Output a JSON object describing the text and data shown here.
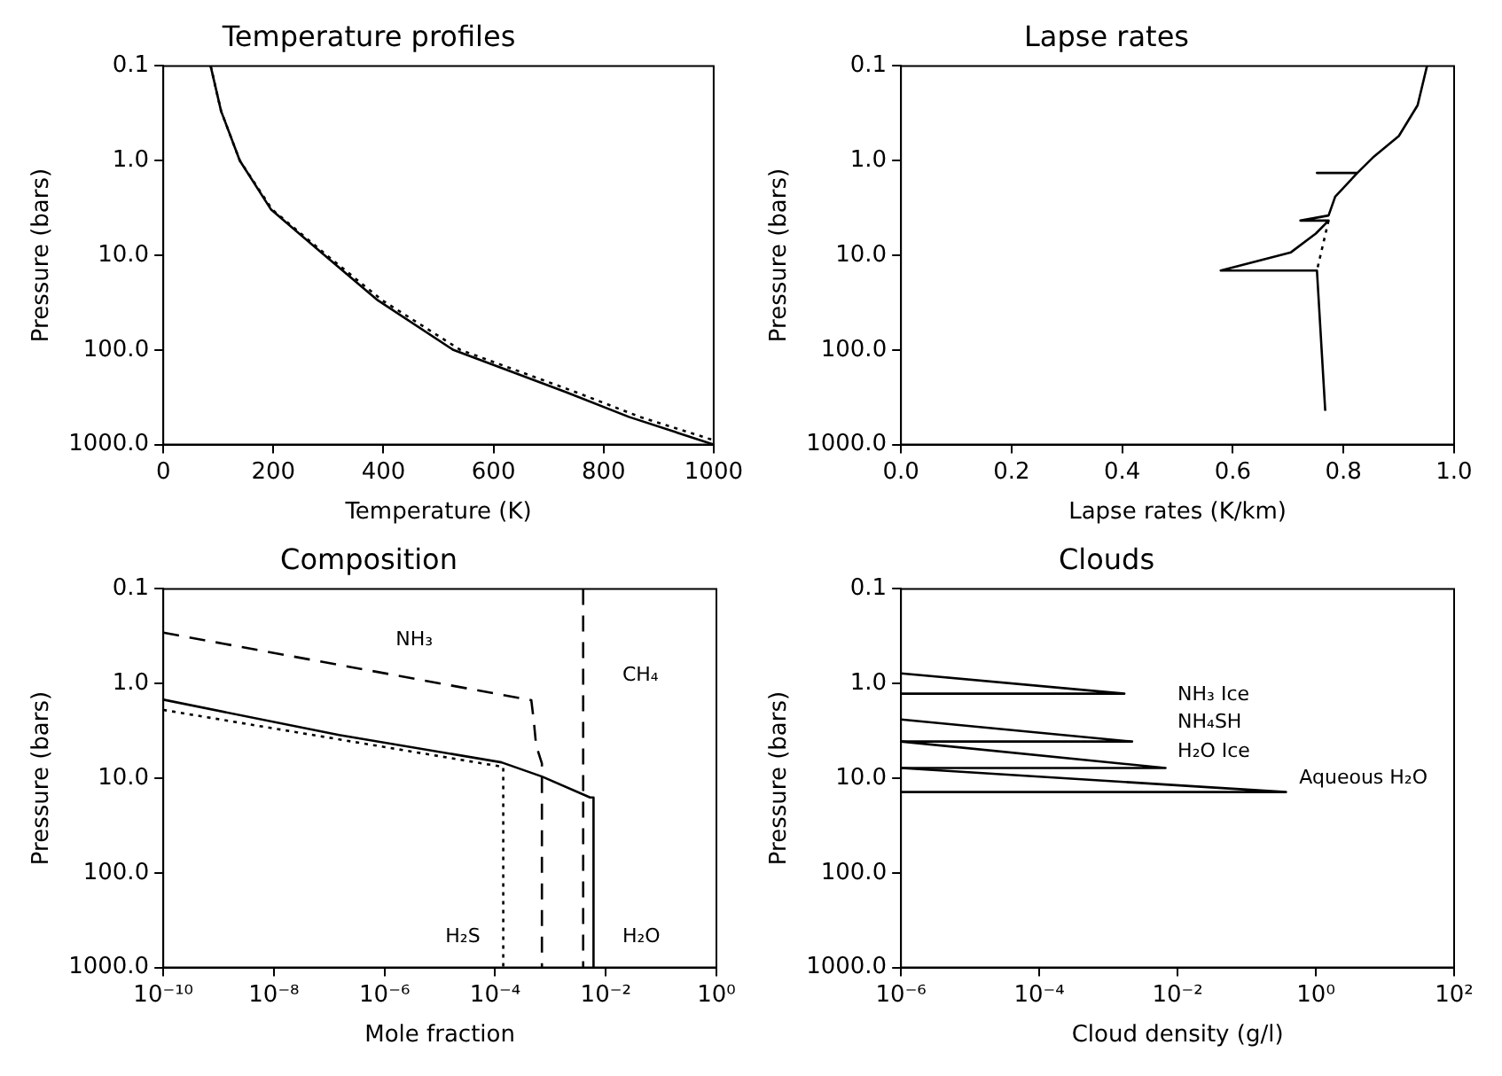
{
  "chart_data": [
    {
      "type": "line",
      "title": "Temperature profiles",
      "xlabel": "Temperature (K)",
      "ylabel": "Pressure (bars)",
      "log": "y",
      "marker": "none",
      "grid": false,
      "legend": false,
      "xlim": [
        0,
        1000
      ],
      "xticks": [
        0,
        200,
        400,
        600,
        800,
        1000
      ],
      "ylim": [
        1000,
        0.1
      ],
      "yticks": [
        {
          "value": 0.1,
          "label": "0.1"
        },
        {
          "value": 1,
          "label": "1.0"
        },
        {
          "value": 10,
          "label": "10.0"
        },
        {
          "value": 100,
          "label": "100.0"
        },
        {
          "value": 1000,
          "label": "1000.0"
        }
      ],
      "series": [
        {
          "color": "#000000",
          "line_style": "solid",
          "x": [
            86,
            105,
            139,
            196,
            293,
            390,
            527,
            732,
            846,
            1000
          ],
          "values": [
            0.1,
            0.3,
            1,
            3.3,
            10,
            30,
            100,
            280,
            510,
            1000
          ]
        },
        {
          "color": "#000000",
          "line_style": "dotted",
          "x": [
            86,
            105,
            139,
            198,
            297,
            398,
            540,
            750,
            866,
            1000
          ],
          "values": [
            0.1,
            0.3,
            1,
            3.3,
            10,
            30,
            100,
            280,
            510,
            900
          ]
        }
      ]
    },
    {
      "type": "line",
      "title": "Lapse rates",
      "xlabel": "Lapse rates (K/km)",
      "ylabel": "Pressure (bars)",
      "log": "y",
      "marker": "none",
      "grid": false,
      "legend": false,
      "xlim": [
        0,
        1
      ],
      "xticks": [
        {
          "value": 0,
          "label": "0.0"
        },
        {
          "value": 0.2,
          "label": "0.2"
        },
        {
          "value": 0.4,
          "label": "0.4"
        },
        {
          "value": 0.6,
          "label": "0.6"
        },
        {
          "value": 0.8,
          "label": "0.8"
        },
        {
          "value": 1,
          "label": "1.0"
        }
      ],
      "ylim": [
        1000,
        0.1
      ],
      "yticks": [
        {
          "value": 0.1,
          "label": "0.1"
        },
        {
          "value": 1,
          "label": "1.0"
        },
        {
          "value": 10,
          "label": "10.0"
        },
        {
          "value": 100,
          "label": "100.0"
        },
        {
          "value": 1000,
          "label": "1000.0"
        }
      ],
      "series": [
        {
          "color": "#000000",
          "line_style": "solid",
          "x": [
            0.951,
            0.934,
            0.9,
            0.853,
            0.825,
            0.752,
            0.825,
            0.785,
            0.773,
            0.722,
            0.773,
            0.75,
            0.705,
            0.578,
            0.752,
            0.767
          ],
          "values": [
            0.1,
            0.26,
            0.55,
            0.93,
            1.35,
            1.35,
            1.35,
            2.4,
            3.8,
            4.3,
            4.3,
            5.9,
            9.3,
            14.5,
            14.5,
            440
          ]
        },
        {
          "color": "#000000",
          "line_style": "dotted",
          "x": [
            0.773,
            0.752
          ],
          "values": [
            4.3,
            14.5
          ]
        }
      ]
    },
    {
      "type": "line",
      "title": "Composition",
      "xlabel": "Mole fraction",
      "ylabel": "Pressure (bars)",
      "log": "xy",
      "marker": "none",
      "grid": false,
      "legend": false,
      "xlim": [
        1e-10,
        1
      ],
      "xticks": [
        {
          "value": 1e-10,
          "label": "10⁻¹⁰"
        },
        {
          "value": 1e-08,
          "label": "10⁻⁸"
        },
        {
          "value": 1e-06,
          "label": "10⁻⁶"
        },
        {
          "value": 0.0001,
          "label": "10⁻⁴"
        },
        {
          "value": 0.01,
          "label": "10⁻²"
        },
        {
          "value": 1,
          "label": "10⁰"
        }
      ],
      "ylim": [
        1000,
        0.1
      ],
      "yticks": [
        {
          "value": 0.1,
          "label": "0.1"
        },
        {
          "value": 1,
          "label": "1.0"
        },
        {
          "value": 10,
          "label": "10.0"
        },
        {
          "value": 100,
          "label": "100.0"
        },
        {
          "value": 1000,
          "label": "1000.0"
        }
      ],
      "series": [
        {
          "color": "#000000",
          "line_style": "dashed",
          "x": [
            1e-10,
            0.00045,
            0.0005,
            0.00055,
            0.0007,
            0.0007
          ],
          "values": [
            0.29,
            1.5,
            2.5,
            4.5,
            7,
            1000
          ]
        },
        {
          "color": "#000000",
          "line_style": "solid",
          "x": [
            1e-10,
            1.5e-07,
            0.00013,
            0.0007,
            0.0052,
            0.006,
            0.006
          ],
          "values": [
            1.48,
            3.5,
            6.8,
            9.6,
            16,
            16,
            1000
          ]
        },
        {
          "color": "#000000",
          "line_style": "dotted",
          "x": [
            1e-10,
            0.00014,
            0.00014
          ],
          "values": [
            1.9,
            7.6,
            1000
          ]
        },
        {
          "color": "#000000",
          "line_style": "dashed",
          "x": [
            0.0039,
            0.0039
          ],
          "values": [
            0.1,
            1000
          ]
        }
      ],
      "annotations": [
        "NH₃",
        "CH₄",
        "H₂S",
        "H₂O"
      ]
    },
    {
      "type": "line",
      "title": "Clouds",
      "xlabel": "Cloud density (g/l)",
      "ylabel": "Pressure (bars)",
      "log": "xy",
      "marker": "none",
      "grid": false,
      "legend": false,
      "xlim": [
        1e-06,
        100
      ],
      "xticks": [
        {
          "value": 1e-06,
          "label": "10⁻⁶"
        },
        {
          "value": 0.0001,
          "label": "10⁻⁴"
        },
        {
          "value": 0.01,
          "label": "10⁻²"
        },
        {
          "value": 1,
          "label": "10⁰"
        },
        {
          "value": 100,
          "label": "10²"
        }
      ],
      "ylim": [
        1000,
        0.1
      ],
      "yticks": [
        {
          "value": 0.1,
          "label": "0.1"
        },
        {
          "value": 1,
          "label": "1.0"
        },
        {
          "value": 10,
          "label": "10.0"
        },
        {
          "value": 100,
          "label": "100.0"
        },
        {
          "value": 1000,
          "label": "1000.0"
        }
      ],
      "series": [
        {
          "color": "#000000",
          "line_style": "solid",
          "x": [
            1e-06,
            0.0017,
            1e-06
          ],
          "values": [
            0.78,
            1.28,
            1.28
          ]
        },
        {
          "color": "#000000",
          "line_style": "solid",
          "x": [
            1e-06,
            0.0022,
            1e-06
          ],
          "values": [
            2.4,
            4.1,
            4.1
          ]
        },
        {
          "color": "#000000",
          "line_style": "solid",
          "x": [
            1e-06,
            0.0067,
            1e-06
          ],
          "values": [
            4.1,
            7.8,
            7.8
          ]
        },
        {
          "color": "#000000",
          "line_style": "solid",
          "x": [
            1e-06,
            0.37,
            1e-06
          ],
          "values": [
            7.8,
            14,
            14
          ]
        }
      ],
      "annotations": [
        "NH₃ Ice",
        "NH₄SH",
        "H₂O Ice",
        "Aqueous H₂O"
      ]
    }
  ]
}
